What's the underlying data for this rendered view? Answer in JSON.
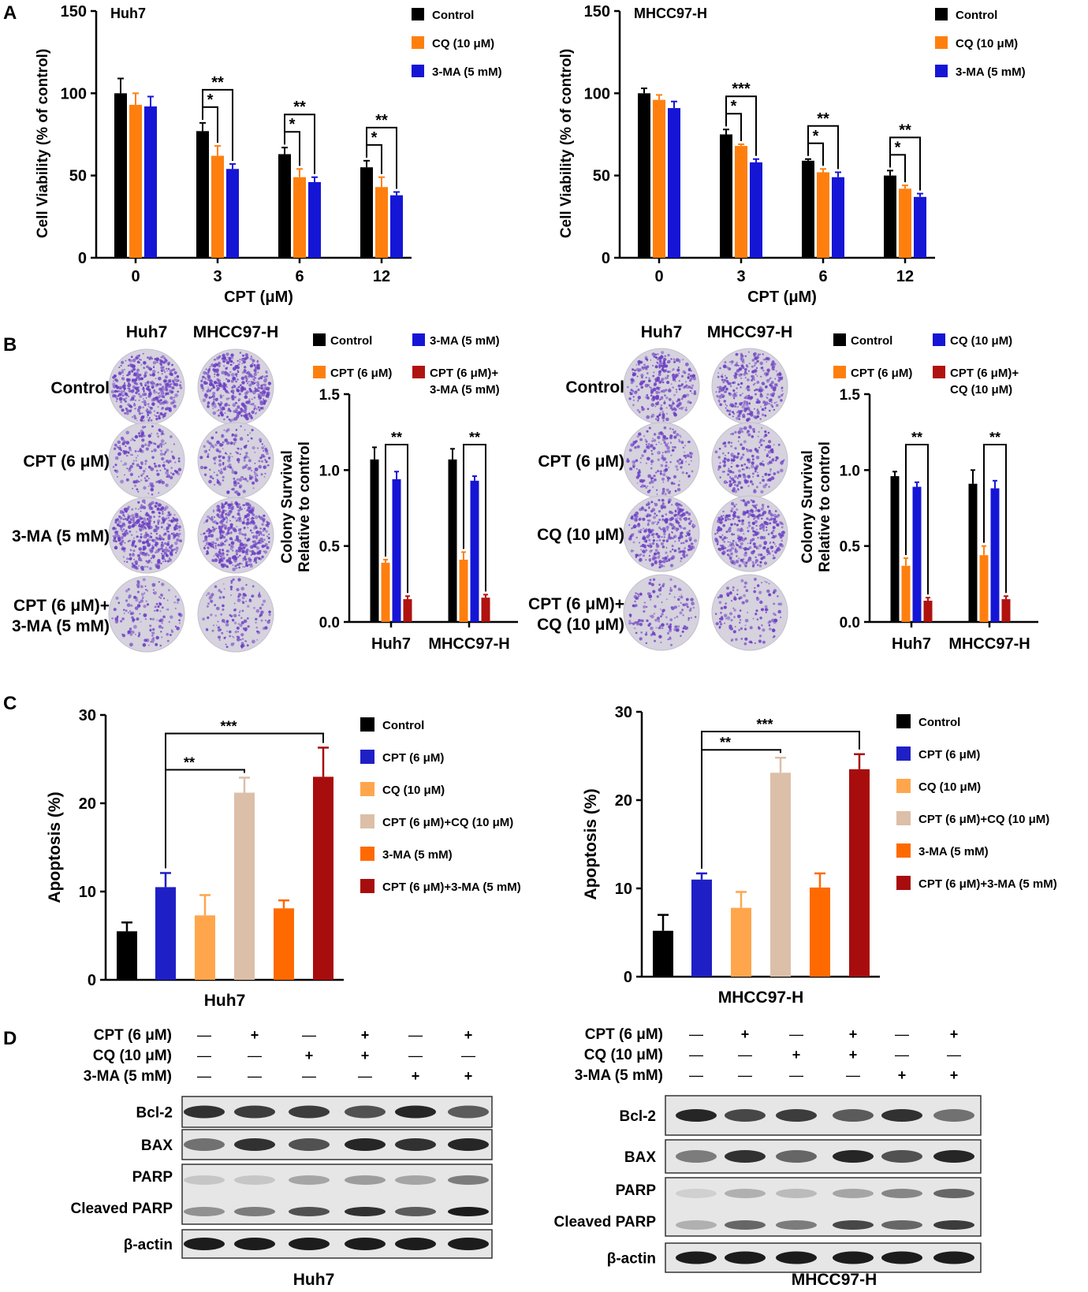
{
  "panel_labels": {
    "A": "A",
    "B": "B",
    "C": "C",
    "D": "D"
  },
  "colors": {
    "black": "#000000",
    "orange": "#ff7f0e",
    "blue": "#1515d6",
    "darkred": "#b0120f",
    "apo_blue": "#1f1fc6",
    "apo_lightorange": "#ffa64d",
    "apo_beige": "#dcbfa8",
    "apo_orange": "#ff6a00",
    "apo_darkred": "#a80d0d",
    "dish_purple": "#6b3fc2"
  },
  "chart_data": [
    {
      "id": "A1",
      "type": "bar",
      "panel": "A",
      "title": "Huh7",
      "xlabel": "CPT (μM)",
      "ylabel": "Cell Viability (% of control)",
      "ylim": [
        0,
        150
      ],
      "yticks": [
        0,
        50,
        100,
        150
      ],
      "categories": [
        "0",
        "3",
        "6",
        "12"
      ],
      "series": [
        {
          "name": "Control",
          "color": "#000000",
          "values": [
            100,
            77,
            63,
            55
          ],
          "errors": [
            9,
            5,
            4,
            4
          ]
        },
        {
          "name": "CQ (10 μM)",
          "color": "#ff7f0e",
          "values": [
            93,
            62,
            49,
            43
          ],
          "errors": [
            7,
            6,
            5,
            6
          ]
        },
        {
          "name": "3-MA (5 mM)",
          "color": "#1515d6",
          "values": [
            92,
            54,
            46,
            38
          ],
          "errors": [
            6,
            3,
            3,
            2
          ]
        }
      ],
      "annotations": [
        {
          "group": "3",
          "from": 0,
          "to": 1,
          "label": "*"
        },
        {
          "group": "3",
          "from": 0,
          "to": 2,
          "label": "**"
        },
        {
          "group": "6",
          "from": 0,
          "to": 1,
          "label": "*"
        },
        {
          "group": "6",
          "from": 0,
          "to": 2,
          "label": "**"
        },
        {
          "group": "12",
          "from": 0,
          "to": 1,
          "label": "*"
        },
        {
          "group": "12",
          "from": 0,
          "to": 2,
          "label": "**"
        }
      ]
    },
    {
      "id": "A2",
      "type": "bar",
      "panel": "A",
      "title": "MHCC97-H",
      "xlabel": "CPT (μM)",
      "ylabel": "Cell Viability (% of control)",
      "ylim": [
        0,
        150
      ],
      "yticks": [
        0,
        50,
        100,
        150
      ],
      "categories": [
        "0",
        "3",
        "6",
        "12"
      ],
      "series": [
        {
          "name": "Control",
          "color": "#000000",
          "values": [
            100,
            75,
            59,
            50
          ],
          "errors": [
            3,
            3,
            1,
            3
          ]
        },
        {
          "name": "CQ (10 μM)",
          "color": "#ff7f0e",
          "values": [
            96,
            68,
            52,
            42
          ],
          "errors": [
            3,
            1,
            2,
            2
          ]
        },
        {
          "name": "3-MA (5 mM)",
          "color": "#1515d6",
          "values": [
            91,
            58,
            49,
            37
          ],
          "errors": [
            4,
            2,
            3,
            2
          ]
        }
      ],
      "annotations": [
        {
          "group": "3",
          "from": 0,
          "to": 1,
          "label": "*"
        },
        {
          "group": "3",
          "from": 0,
          "to": 2,
          "label": "***"
        },
        {
          "group": "6",
          "from": 0,
          "to": 1,
          "label": "*"
        },
        {
          "group": "6",
          "from": 0,
          "to": 2,
          "label": "**"
        },
        {
          "group": "12",
          "from": 0,
          "to": 1,
          "label": "*"
        },
        {
          "group": "12",
          "from": 0,
          "to": 2,
          "label": "**"
        }
      ]
    },
    {
      "id": "B1",
      "type": "bar",
      "panel": "B",
      "ylabel_line1": "Colony Survival",
      "ylabel_line2": "Relative to control",
      "ylim": [
        0,
        1.5
      ],
      "yticks": [
        "0.0",
        "0.5",
        "1.0",
        "1.5"
      ],
      "categories": [
        "Huh7",
        "MHCC97-H"
      ],
      "series": [
        {
          "name": "Control",
          "color": "#000000",
          "values": [
            1.07,
            1.07
          ],
          "errors": [
            0.08,
            0.07
          ]
        },
        {
          "name": "CPT (6 μM)",
          "color": "#ff7f0e",
          "values": [
            0.39,
            0.41
          ],
          "errors": [
            0.02,
            0.05
          ]
        },
        {
          "name": "3-MA (5 mM)",
          "color": "#1515d6",
          "values": [
            0.94,
            0.93
          ],
          "errors": [
            0.05,
            0.03
          ]
        },
        {
          "name": "CPT (6 μM)+ 3-MA (5 mM)",
          "color": "#b0120f",
          "values": [
            0.15,
            0.16
          ],
          "errors": [
            0.02,
            0.02
          ]
        }
      ],
      "annotations": [
        {
          "group": "Huh7",
          "from": 1,
          "to": 3,
          "label": "**"
        },
        {
          "group": "MHCC97-H",
          "from": 1,
          "to": 3,
          "label": "**"
        }
      ],
      "dish_columns": [
        "Huh7",
        "MHCC97-H"
      ],
      "dish_rows": [
        "Control",
        "CPT (6 μM)",
        "3-MA (5 mM)",
        "CPT (6 μM)+ 3-MA (5 mM)"
      ]
    },
    {
      "id": "B2",
      "type": "bar",
      "panel": "B",
      "ylabel_line1": "Colony Survival",
      "ylabel_line2": "Relative to control",
      "ylim": [
        0,
        1.5
      ],
      "yticks": [
        "0.0",
        "0.5",
        "1.0",
        "1.5"
      ],
      "categories": [
        "Huh7",
        "MHCC97-H"
      ],
      "series": [
        {
          "name": "Control",
          "color": "#000000",
          "values": [
            0.96,
            0.91
          ],
          "errors": [
            0.03,
            0.09
          ]
        },
        {
          "name": "CPT (6 μM)",
          "color": "#ff7f0e",
          "values": [
            0.37,
            0.44
          ],
          "errors": [
            0.05,
            0.06
          ]
        },
        {
          "name": "CQ (10 μM)",
          "color": "#1515d6",
          "values": [
            0.89,
            0.88
          ],
          "errors": [
            0.03,
            0.05
          ]
        },
        {
          "name": "CPT (6 μM)+ CQ (10 μM)",
          "color": "#b0120f",
          "values": [
            0.14,
            0.15
          ],
          "errors": [
            0.02,
            0.02
          ]
        }
      ],
      "annotations": [
        {
          "group": "Huh7",
          "from": 1,
          "to": 3,
          "label": "**"
        },
        {
          "group": "MHCC97-H",
          "from": 1,
          "to": 3,
          "label": "**"
        }
      ],
      "dish_columns": [
        "Huh7",
        "MHCC97-H"
      ],
      "dish_rows": [
        "Control",
        "CPT (6 μM)",
        "CQ (10 μM)",
        "CPT (6 μM)+ CQ (10 μM)"
      ]
    },
    {
      "id": "C1",
      "type": "bar",
      "panel": "C",
      "xlabel": "Huh7",
      "ylabel": "Apoptosis (%)",
      "ylim": [
        0,
        30
      ],
      "yticks": [
        0,
        10,
        20,
        30
      ],
      "series": [
        {
          "name": "Control",
          "color": "#000000",
          "value": 5.5,
          "error": 1.0
        },
        {
          "name": "CPT (6 μM)",
          "color": "#1f1fc6",
          "value": 10.5,
          "error": 1.6
        },
        {
          "name": "CQ (10 μM)",
          "color": "#ffa64d",
          "value": 7.3,
          "error": 2.3
        },
        {
          "name": "CPT (6 μM)+CQ (10 μM)",
          "color": "#dcbfa8",
          "value": 21.2,
          "error": 1.7
        },
        {
          "name": "3-MA (5 mM)",
          "color": "#ff6a00",
          "value": 8.1,
          "error": 0.9
        },
        {
          "name": "CPT (6 μM)+3-MA (5 mM)",
          "color": "#a80d0d",
          "value": 23.0,
          "error": 3.3
        }
      ],
      "annotations": [
        {
          "from": 1,
          "to": 3,
          "label": "**"
        },
        {
          "from": 1,
          "to": 5,
          "label": "***"
        }
      ]
    },
    {
      "id": "C2",
      "type": "bar",
      "panel": "C",
      "xlabel": "MHCC97-H",
      "ylabel": "Apoptosis (%)",
      "ylim": [
        0,
        30
      ],
      "yticks": [
        0,
        10,
        20,
        30
      ],
      "series": [
        {
          "name": "Control",
          "color": "#000000",
          "value": 5.2,
          "error": 1.8
        },
        {
          "name": "CPT (6 μM)",
          "color": "#1f1fc6",
          "value": 11.0,
          "error": 0.7
        },
        {
          "name": "CQ (10 μM)",
          "color": "#ffa64d",
          "value": 7.8,
          "error": 1.8
        },
        {
          "name": "CPT (6 μM)+CQ (10 μM)",
          "color": "#dcbfa8",
          "value": 23.1,
          "error": 1.7
        },
        {
          "name": "3-MA (5 mM)",
          "color": "#ff6a00",
          "value": 10.1,
          "error": 1.6
        },
        {
          "name": "CPT (6 μM)+3-MA (5 mM)",
          "color": "#a80d0d",
          "value": 23.5,
          "error": 1.7
        }
      ],
      "annotations": [
        {
          "from": 1,
          "to": 3,
          "label": "**"
        },
        {
          "from": 1,
          "to": 5,
          "label": "***"
        }
      ]
    }
  ],
  "western_blots": [
    {
      "cell_line": "Huh7",
      "treatments": [
        {
          "label": "CPT (6 μM)",
          "signs": [
            "—",
            "+",
            "—",
            "+",
            "—",
            "+"
          ]
        },
        {
          "label": "CQ (10 μM)",
          "signs": [
            "—",
            "—",
            "+",
            "+",
            "—",
            "—"
          ]
        },
        {
          "label": "3-MA (5 mM)",
          "signs": [
            "—",
            "—",
            "—",
            "—",
            "+",
            "+"
          ]
        }
      ],
      "blots": [
        {
          "labels": [
            "Bcl-2"
          ],
          "intensity": [
            [
              0.85,
              0.8,
              0.8,
              0.7,
              0.9,
              0.65
            ]
          ]
        },
        {
          "labels": [
            "BAX"
          ],
          "intensity": [
            [
              0.55,
              0.85,
              0.7,
              0.9,
              0.85,
              0.9
            ]
          ]
        },
        {
          "labels": [
            "PARP",
            "Cleaved PARP"
          ],
          "intensity": [
            [
              0.15,
              0.15,
              0.3,
              0.35,
              0.3,
              0.5
            ],
            [
              0.4,
              0.5,
              0.7,
              0.85,
              0.65,
              0.95
            ]
          ]
        },
        {
          "labels": [
            "β-actin"
          ],
          "intensity": [
            [
              0.95,
              0.95,
              0.95,
              0.95,
              0.95,
              0.95
            ]
          ]
        }
      ]
    },
    {
      "cell_line": "MHCC97-H",
      "treatments": [
        {
          "label": "CPT (6 μM)",
          "signs": [
            "—",
            "+",
            "—",
            "+",
            "—",
            "+"
          ]
        },
        {
          "label": "CQ (10 μM)",
          "signs": [
            "—",
            "—",
            "+",
            "+",
            "—",
            "—"
          ]
        },
        {
          "label": "3-MA (5 mM)",
          "signs": [
            "—",
            "—",
            "—",
            "—",
            "+",
            "+"
          ]
        }
      ],
      "blots": [
        {
          "labels": [
            "Bcl-2"
          ],
          "intensity": [
            [
              0.9,
              0.75,
              0.8,
              0.65,
              0.85,
              0.55
            ]
          ]
        },
        {
          "labels": [
            "BAX"
          ],
          "intensity": [
            [
              0.5,
              0.85,
              0.6,
              0.9,
              0.7,
              0.9
            ]
          ]
        },
        {
          "labels": [
            "PARP",
            "Cleaved PARP"
          ],
          "intensity": [
            [
              0.1,
              0.25,
              0.2,
              0.3,
              0.45,
              0.6
            ],
            [
              0.25,
              0.6,
              0.5,
              0.75,
              0.6,
              0.8
            ]
          ]
        },
        {
          "labels": [
            "β-actin"
          ],
          "intensity": [
            [
              0.95,
              0.95,
              0.95,
              0.95,
              0.95,
              0.95
            ]
          ]
        }
      ]
    }
  ]
}
